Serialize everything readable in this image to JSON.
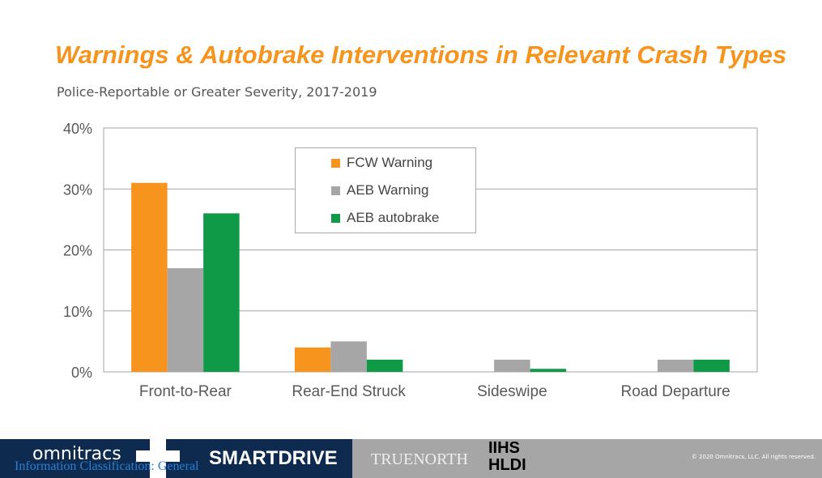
{
  "title": "Warnings & Autobrake Interventions in Relevant Crash Types",
  "subtitle": "Police-Reportable or Greater Severity, 2017-2019",
  "chart_data": {
    "type": "bar",
    "categories": [
      "Front-to-Rear",
      "Rear-End Struck",
      "Sideswipe",
      "Road Departure"
    ],
    "series": [
      {
        "name": "FCW Warning",
        "color": "#f7941d",
        "values": [
          31,
          4,
          0,
          0
        ]
      },
      {
        "name": "AEB Warning",
        "color": "#a6a6a6",
        "values": [
          17,
          5,
          2,
          2
        ]
      },
      {
        "name": "AEB autobrake",
        "color": "#0f9a48",
        "values": [
          26,
          2,
          0.5,
          2
        ]
      }
    ],
    "ylim": [
      0,
      40
    ],
    "yticks": [
      "0%",
      "10%",
      "20%",
      "30%",
      "40%"
    ],
    "grid": true,
    "legend": "top-center"
  },
  "footer": {
    "omnitracs": "omnitracs",
    "classification": "Information Classification: General",
    "smartdrive": "SMARTDRIVE",
    "truenorth": "TRUENORTH",
    "iihs": "IIHS",
    "hldi": "HLDI",
    "copyright": "© 2020 Omnitracs, LLC. All rights reserved."
  }
}
